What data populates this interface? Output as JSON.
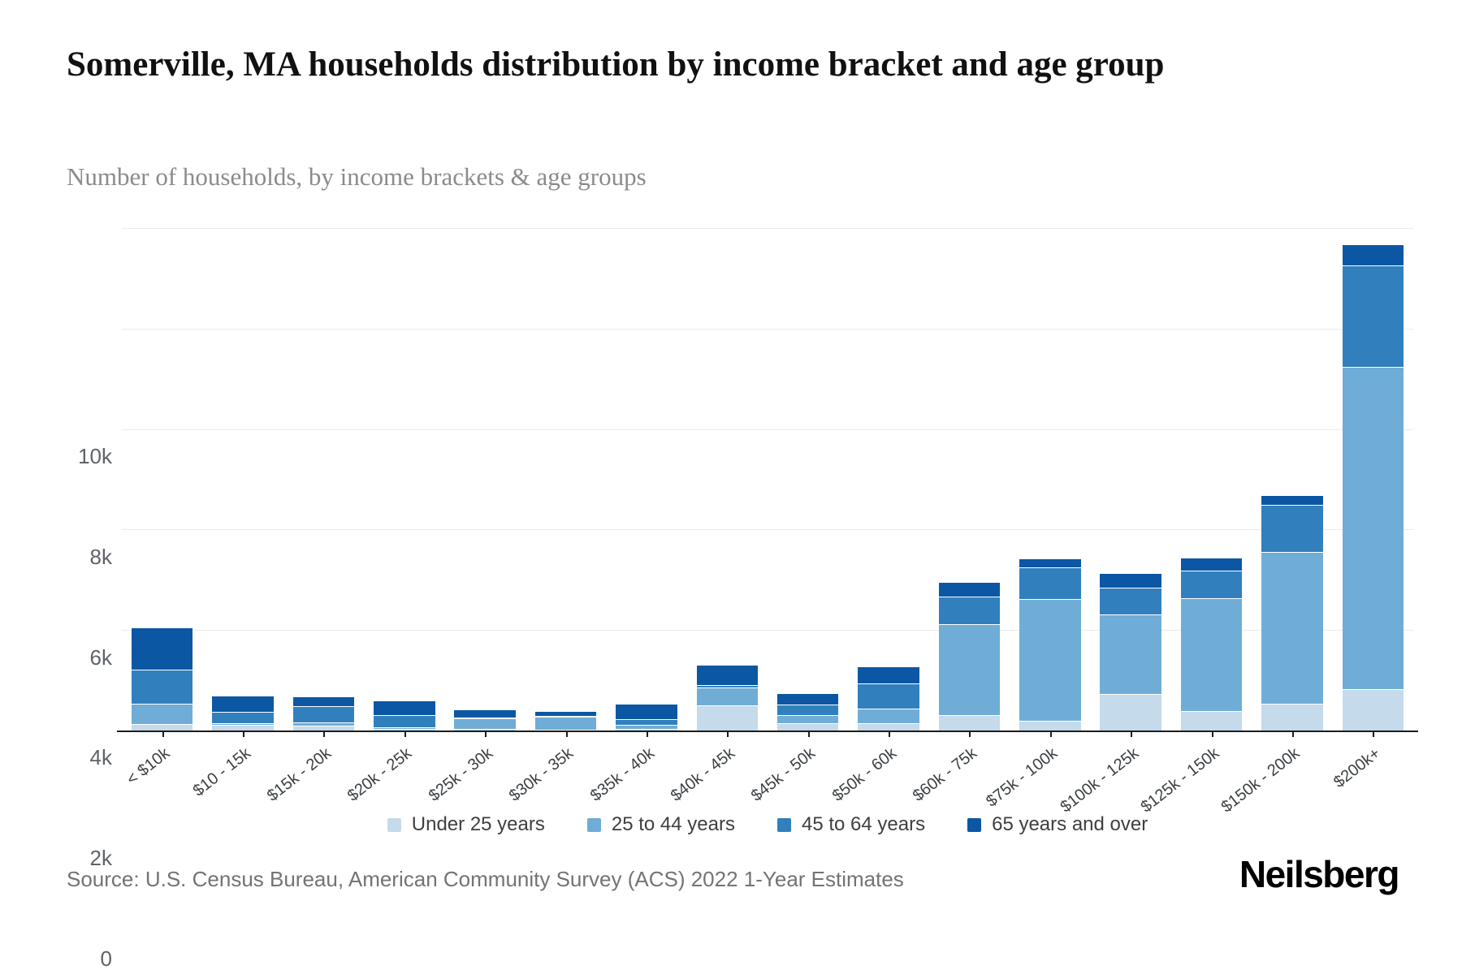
{
  "title": "Somerville, MA households distribution by income bracket and age group",
  "subtitle": "Number of households, by income brackets & age groups",
  "source": "Source: U.S. Census Bureau, American Community Survey (ACS) 2022 1-Year Estimates",
  "brand": "Neilsberg",
  "y_axis": {
    "tick_labels": [
      "10k",
      "8k",
      "6k",
      "4k",
      "2k",
      "0"
    ],
    "tick_values": [
      10000,
      8000,
      6000,
      4000,
      2000,
      0
    ]
  },
  "chart_data": {
    "type": "bar",
    "stacked": true,
    "grid": "horizontal",
    "legend_position": "bottom-center",
    "ylim": [
      0,
      10000
    ],
    "ylabel": "",
    "xlabel": "",
    "categories": [
      "< $10k",
      "$10 - 15k",
      "$15k - 20k",
      "$20k - 25k",
      "$25k - 30k",
      "$30k - 35k",
      "$35k - 40k",
      "$40k - 45k",
      "$45k - 50k",
      "$50k - 60k",
      "$60k - 75k",
      "$75k - 100k",
      "$100k - 125k",
      "$125k - 150k",
      "$150k - 200k",
      "$200k+"
    ],
    "series": [
      {
        "name": "Under 25 years",
        "color": "#c5daea",
        "values": [
          125,
          120,
          100,
          40,
          40,
          20,
          40,
          500,
          150,
          150,
          300,
          200,
          720,
          380,
          540,
          830
        ]
      },
      {
        "name": "25 to 44 years",
        "color": "#6fadd7",
        "values": [
          415,
          20,
          60,
          30,
          200,
          255,
          70,
          355,
          160,
          285,
          1820,
          2420,
          1590,
          2250,
          3010,
          6410
        ]
      },
      {
        "name": "45 to 64 years",
        "color": "#3180bd",
        "values": [
          670,
          230,
          330,
          240,
          15,
          20,
          120,
          55,
          210,
          505,
          540,
          630,
          530,
          560,
          940,
          2020
        ]
      },
      {
        "name": "65 years and over",
        "color": "#0b57a4",
        "values": [
          850,
          320,
          185,
          290,
          170,
          90,
          300,
          400,
          230,
          330,
          300,
          170,
          290,
          250,
          200,
          420
        ]
      }
    ]
  }
}
